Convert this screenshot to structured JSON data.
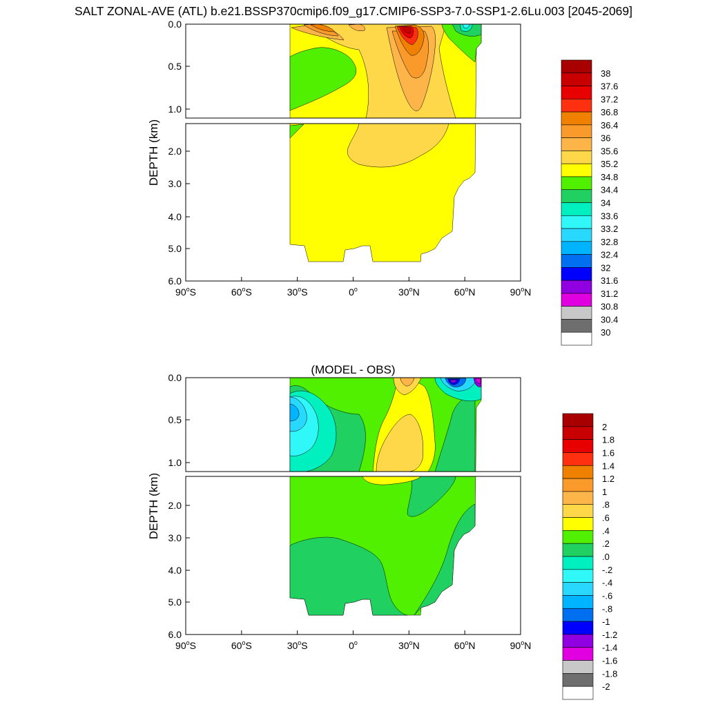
{
  "title": "SALT ZONAL-AVE (ATL) b.e21.BSSP370cmip6.f09_g17.CMIP6-SSP3-7.0-SSP1-2.6Lu.003 [2045-2069]",
  "chart_data": [
    {
      "type": "heatmap",
      "title": "",
      "variable": "SALT",
      "xlabel": "",
      "ylabel": "DEPTH (km)",
      "xlim": [
        -90,
        90
      ],
      "ylim": [
        6.0,
        0.0
      ],
      "depth_panels": [
        [
          0.0,
          1.1
        ],
        [
          1.1,
          6.0
        ]
      ],
      "x_ticks": [
        "90°S",
        "60°S",
        "30°S",
        "0°",
        "30°N",
        "60°N",
        "90°N"
      ],
      "y_ticks": [
        "0.0",
        "0.5",
        "1.0",
        "2.0",
        "3.0",
        "4.0",
        "5.0",
        "6.0"
      ],
      "colorbar": {
        "labels": [
          "38",
          "37.6",
          "37.2",
          "36.8",
          "36.4",
          "36",
          "35.6",
          "35.2",
          "34.8",
          "34.4",
          "34",
          "33.6",
          "33.2",
          "32.8",
          "32.4",
          "32",
          "31.6",
          "31.2",
          "30.8",
          "30.4",
          "30"
        ],
        "colors": [
          "#a80000",
          "#c80000",
          "#e80000",
          "#ff3010",
          "#f08000",
          "#fa9a2a",
          "#fdb54a",
          "#ffd84a",
          "#ffff00",
          "#50f000",
          "#20d060",
          "#00f0c0",
          "#30f8f8",
          "#28d8ff",
          "#00b4ff",
          "#0070f0",
          "#0000ff",
          "#9000e0",
          "#e000e0",
          "#c8c8c8",
          "#6e6e6e",
          "#ffffff"
        ]
      }
    },
    {
      "type": "heatmap",
      "title": "(MODEL - OBS)",
      "variable": "SALT difference",
      "xlabel": "",
      "ylabel": "DEPTH (km)",
      "xlim": [
        -90,
        90
      ],
      "ylim": [
        6.0,
        0.0
      ],
      "depth_panels": [
        [
          0.0,
          1.1
        ],
        [
          1.1,
          6.0
        ]
      ],
      "x_ticks": [
        "90°S",
        "60°S",
        "30°S",
        "0°",
        "30°N",
        "60°N",
        "90°N"
      ],
      "y_ticks": [
        "0.0",
        "0.5",
        "1.0",
        "2.0",
        "3.0",
        "4.0",
        "5.0",
        "6.0"
      ],
      "colorbar": {
        "labels": [
          "2",
          "1.8",
          "1.6",
          "1.4",
          "1.2",
          "1",
          ".8",
          ".6",
          ".4",
          ".2",
          ".0",
          "-.2",
          "-.4",
          "-.6",
          "-.8",
          "-1",
          "-1.2",
          "-1.4",
          "-1.6",
          "-1.8",
          "-2"
        ],
        "colors": [
          "#a80000",
          "#c80000",
          "#e80000",
          "#ff3010",
          "#f08000",
          "#fa9a2a",
          "#fdb54a",
          "#ffd84a",
          "#ffff00",
          "#50f000",
          "#20d060",
          "#00f0c0",
          "#30f8f8",
          "#28d8ff",
          "#00b4ff",
          "#0070f0",
          "#0000ff",
          "#9000e0",
          "#e000e0",
          "#c8c8c8",
          "#6e6e6e",
          "#ffffff"
        ]
      }
    }
  ]
}
